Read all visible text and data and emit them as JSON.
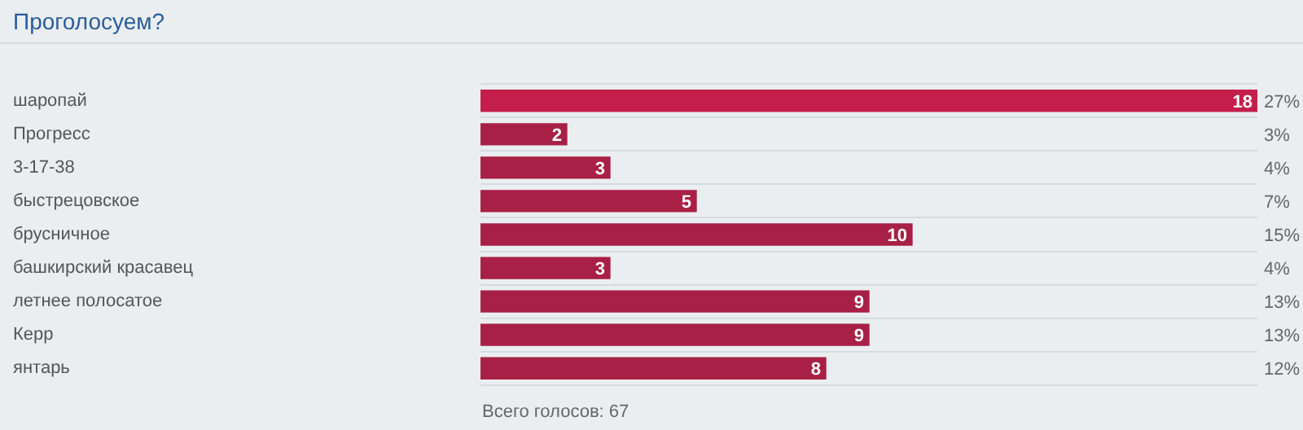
{
  "chart_data": {
    "type": "bar",
    "orientation": "horizontal",
    "title": "Проголосуем?",
    "categories": [
      "шаропай",
      "Прогресс",
      "3-17-38",
      "быстрецовское",
      "брусничное",
      "башкирский красавец",
      "летнее полосатое",
      "Керр",
      "янтарь"
    ],
    "values": [
      18,
      2,
      3,
      5,
      10,
      3,
      9,
      9,
      8
    ],
    "colors": [
      "#c41e4a",
      "#a82045",
      "#a82045",
      "#a82045",
      "#a82045",
      "#a82045",
      "#a82045",
      "#a82045",
      "#a82045"
    ],
    "data_labels": true,
    "grid": "y",
    "tick_labels": "y",
    "legend": false,
    "annotations": [
      "27%",
      "3%",
      "4%",
      "7%",
      "15%",
      "4%",
      "13%",
      "13%",
      "12%",
      "Всего голосов: 67"
    ]
  }
}
